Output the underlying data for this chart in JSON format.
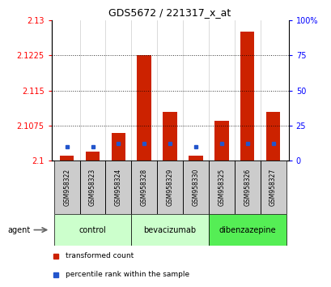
{
  "title": "GDS5672 / 221317_x_at",
  "samples": [
    "GSM958322",
    "GSM958323",
    "GSM958324",
    "GSM958328",
    "GSM958329",
    "GSM958330",
    "GSM958325",
    "GSM958326",
    "GSM958327"
  ],
  "transformed_counts": [
    2.101,
    2.102,
    2.106,
    2.1225,
    2.1105,
    2.101,
    2.1085,
    2.1275,
    2.1105
  ],
  "percentile_ranks": [
    10,
    10,
    12,
    12,
    12,
    10,
    12,
    12,
    12
  ],
  "group_configs": [
    {
      "name": "control",
      "indices": [
        0,
        1,
        2
      ],
      "color": "#ccffcc"
    },
    {
      "name": "bevacizumab",
      "indices": [
        3,
        4,
        5
      ],
      "color": "#ccffcc"
    },
    {
      "name": "dibenzazepine",
      "indices": [
        6,
        7,
        8
      ],
      "color": "#55ee55"
    }
  ],
  "ylim_left": [
    2.1,
    2.13
  ],
  "yticks_left": [
    2.1,
    2.1075,
    2.115,
    2.1225,
    2.13
  ],
  "yticks_right": [
    0,
    25,
    50,
    75,
    100
  ],
  "bar_color": "#cc2200",
  "blue_color": "#2255cc",
  "baseline": 2.1,
  "background_color": "#ffffff",
  "agent_label": "agent",
  "legend_tc": "transformed count",
  "legend_pr": "percentile rank within the sample"
}
